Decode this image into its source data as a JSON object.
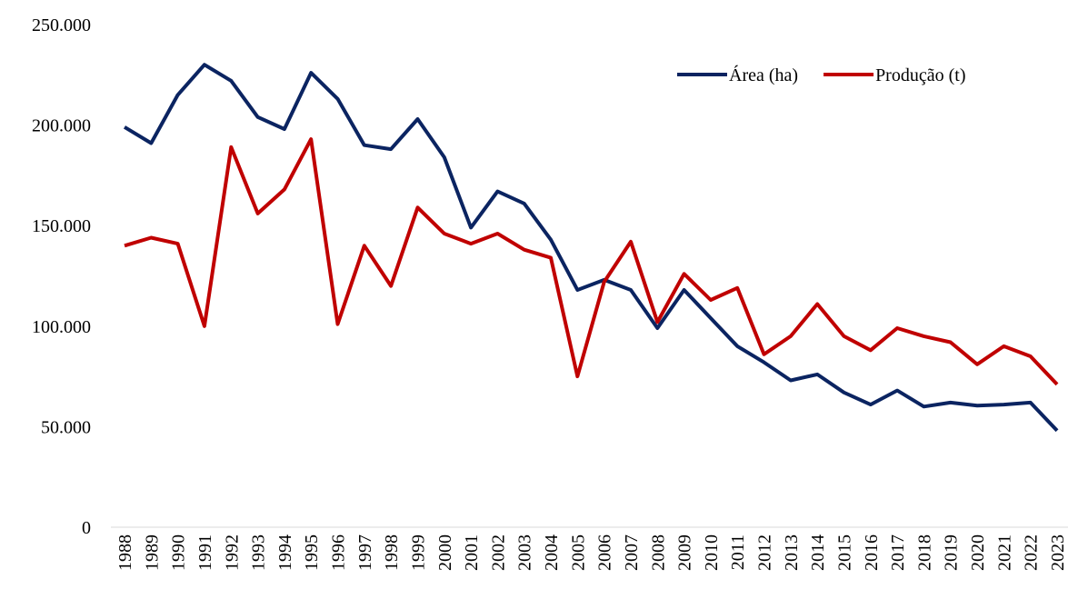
{
  "chart_data": {
    "type": "line",
    "categories": [
      "1988",
      "1989",
      "1990",
      "1991",
      "1992",
      "1993",
      "1994",
      "1995",
      "1996",
      "1997",
      "1998",
      "1999",
      "2000",
      "2001",
      "2002",
      "2003",
      "2004",
      "2005",
      "2006",
      "2007",
      "2008",
      "2009",
      "2010",
      "2011",
      "2012",
      "2013",
      "2014",
      "2015",
      "2016",
      "2017",
      "2018",
      "2019",
      "2020",
      "2021",
      "2022",
      "2023"
    ],
    "series": [
      {
        "name": "Área (ha)",
        "color": "#0b2461",
        "values": [
          199000,
          191000,
          215000,
          230000,
          222000,
          204000,
          198000,
          226000,
          213000,
          190000,
          188000,
          203000,
          184000,
          149000,
          167000,
          161000,
          143000,
          118000,
          123000,
          118000,
          99000,
          118000,
          104000,
          90000,
          82000,
          73000,
          76000,
          67000,
          61000,
          68000,
          60000,
          62000,
          60500,
          61000,
          62000,
          48000
        ]
      },
      {
        "name": "Produção (t)",
        "color": "#c00000",
        "values": [
          140000,
          144000,
          141000,
          100000,
          189000,
          156000,
          168000,
          193000,
          101000,
          140000,
          120000,
          159000,
          146000,
          141000,
          146000,
          138000,
          134000,
          75000,
          122000,
          142000,
          102000,
          126000,
          113000,
          119000,
          86000,
          95000,
          111000,
          95000,
          88000,
          99000,
          95000,
          92000,
          81000,
          90000,
          85000,
          71000
        ]
      }
    ],
    "ylim": [
      0,
      250000
    ],
    "yticks": [
      0,
      {
        "value": 50000,
        "label": "50.000"
      },
      {
        "value": 100000,
        "label": "100.000"
      },
      {
        "value": 150000,
        "label": "150.000"
      },
      {
        "value": 200000,
        "label": "200.000"
      },
      {
        "value": 250000,
        "label": "250.000"
      }
    ],
    "legend": "top-right"
  }
}
